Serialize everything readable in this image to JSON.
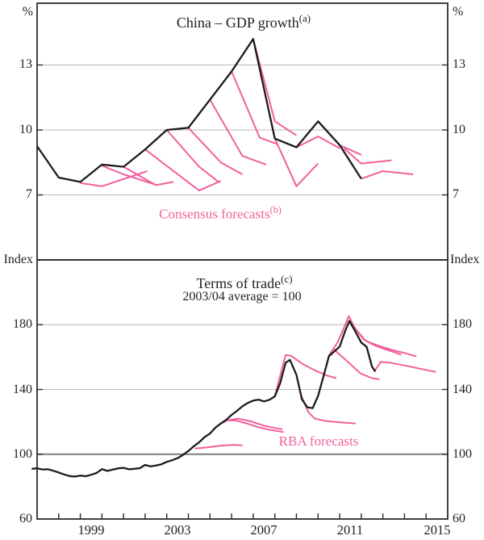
{
  "figure": {
    "top_panel": {
      "title": "China – GDP growth",
      "title_note": "(a)",
      "unit_left": "%",
      "unit_right": "%",
      "annotation": "Consensus forecasts",
      "annotation_note": "(b)"
    },
    "bottom_panel": {
      "title": "Terms of trade",
      "title_note": "(c)",
      "subtitle": "2003/04 average = 100",
      "unit_left": "Index",
      "unit_right": "Index",
      "annotation": "RBA forecasts"
    },
    "colors": {
      "actual_line": "#1c1c1c",
      "forecast_line": "#f1609c",
      "gridline": "#b7b7c0",
      "reference_line": "#7e7e7e",
      "frame": "#2d2d2d",
      "text": "#1f1f1f"
    }
  },
  "x_axis": {
    "xlim": [
      1997.0,
      2016.0
    ],
    "tick_years": [
      1998,
      1999,
      2000,
      2001,
      2002,
      2003,
      2004,
      2005,
      2006,
      2007,
      2008,
      2009,
      2010,
      2011,
      2012,
      2013,
      2014,
      2015
    ],
    "labels": [
      {
        "text": "1999",
        "year": 1999.5
      },
      {
        "text": "2003",
        "year": 2003.5
      },
      {
        "text": "2007",
        "year": 2007.5
      },
      {
        "text": "2011",
        "year": 2011.5
      },
      {
        "text": "2015",
        "year": 2015.5
      }
    ]
  },
  "chart_data": [
    {
      "type": "line",
      "panel": "top",
      "title": "China – GDP growth(a)",
      "ylabel": "%",
      "yticks": [
        7,
        10,
        13
      ],
      "ylim": [
        4.0,
        15.85
      ],
      "grid": true,
      "annotation": "Consensus forecasts(b)",
      "series": [
        {
          "name": "China GDP growth (actual)",
          "role": "actual",
          "points": [
            [
              1997,
              9.25
            ],
            [
              1998,
              7.8
            ],
            [
              1999,
              7.6
            ],
            [
              2000,
              8.4
            ],
            [
              2001,
              8.3
            ],
            [
              2002,
              9.1
            ],
            [
              2003,
              10.0
            ],
            [
              2004,
              10.1
            ],
            [
              2005,
              11.4
            ],
            [
              2006,
              12.7
            ],
            [
              2007,
              14.2
            ],
            [
              2008,
              9.6
            ],
            [
              2009,
              9.2
            ],
            [
              2010,
              10.4
            ],
            [
              2011,
              9.3
            ],
            [
              2012,
              7.75
            ]
          ]
        },
        {
          "name": "Consensus forecasts (vintages)",
          "role": "forecast",
          "lines": [
            [
              [
                1999,
                7.55
              ],
              [
                2000,
                7.4
              ],
              [
                2002.1,
                8.1
              ]
            ],
            [
              [
                2000,
                8.35
              ],
              [
                2001,
                7.95
              ],
              [
                2002.4,
                7.5
              ]
            ],
            [
              [
                2001,
                8.3
              ],
              [
                2002.5,
                7.45
              ],
              [
                2003.3,
                7.6
              ]
            ],
            [
              [
                2002,
                9.1
              ],
              [
                2004.5,
                7.2
              ],
              [
                2005.5,
                7.65
              ]
            ],
            [
              [
                2003,
                10.0
              ],
              [
                2004.5,
                8.3
              ],
              [
                2005.4,
                7.6
              ]
            ],
            [
              [
                2004,
                10.1
              ],
              [
                2005.5,
                8.5
              ],
              [
                2006.5,
                7.95
              ]
            ],
            [
              [
                2005,
                11.4
              ],
              [
                2006.5,
                8.8
              ],
              [
                2007.6,
                8.4
              ]
            ],
            [
              [
                2006,
                12.7
              ],
              [
                2007.3,
                9.65
              ],
              [
                2008.1,
                9.35
              ]
            ],
            [
              [
                2007,
                14.2
              ],
              [
                2008,
                10.4
              ],
              [
                2009,
                9.75
              ]
            ],
            [
              [
                2008,
                9.6
              ],
              [
                2009,
                7.4
              ],
              [
                2010,
                8.45
              ]
            ],
            [
              [
                2009,
                9.2
              ],
              [
                2010,
                9.7
              ],
              [
                2011,
                9.15
              ]
            ],
            [
              [
                2010,
                10.4
              ],
              [
                2011,
                9.3
              ],
              [
                2012,
                8.85
              ]
            ],
            [
              [
                2011.2,
                9.15
              ],
              [
                2012,
                8.45
              ],
              [
                2013.4,
                8.6
              ]
            ],
            [
              [
                2012,
                7.75
              ],
              [
                2013,
                8.1
              ],
              [
                2014.4,
                7.95
              ]
            ]
          ]
        }
      ]
    },
    {
      "type": "line",
      "panel": "bottom",
      "title": "Terms of trade(c)",
      "subtitle": "2003/04 average = 100",
      "ylabel": "Index",
      "yticks": [
        60,
        100,
        140,
        180
      ],
      "reference_line": 100,
      "ylim": [
        60,
        220
      ],
      "grid": true,
      "annotation": "RBA forecasts",
      "series": [
        {
          "name": "Terms of trade (actual)",
          "role": "actual",
          "points": [
            [
              1996.75,
              91
            ],
            [
              1997,
              91.3
            ],
            [
              1997.25,
              90.6
            ],
            [
              1997.5,
              90.7
            ],
            [
              1997.75,
              89.8
            ],
            [
              1998,
              88.7
            ],
            [
              1998.25,
              87.5
            ],
            [
              1998.5,
              86.5
            ],
            [
              1998.75,
              86.2
            ],
            [
              1999,
              86.8
            ],
            [
              1999.25,
              86.4
            ],
            [
              1999.5,
              87.3
            ],
            [
              1999.75,
              88.4
            ],
            [
              2000,
              90.8
            ],
            [
              2000.25,
              89.7
            ],
            [
              2000.5,
              90.5
            ],
            [
              2000.75,
              91.3
            ],
            [
              2001,
              91.6
            ],
            [
              2001.25,
              90.7
            ],
            [
              2001.5,
              91.0
            ],
            [
              2001.75,
              91.4
            ],
            [
              2002,
              93.4
            ],
            [
              2002.25,
              92.5
            ],
            [
              2002.5,
              93.0
            ],
            [
              2002.75,
              93.8
            ],
            [
              2003,
              95.3
            ],
            [
              2003.25,
              96.3
            ],
            [
              2003.5,
              97.6
            ],
            [
              2003.75,
              99.6
            ],
            [
              2004,
              102.0
            ],
            [
              2004.25,
              104.9
            ],
            [
              2004.5,
              107.4
            ],
            [
              2004.75,
              110.6
            ],
            [
              2005,
              112.8
            ],
            [
              2005.25,
              116.4
            ],
            [
              2005.5,
              119.0
            ],
            [
              2005.75,
              121.2
            ],
            [
              2006,
              124.3
            ],
            [
              2006.25,
              126.8
            ],
            [
              2006.5,
              129.6
            ],
            [
              2006.75,
              131.7
            ],
            [
              2007,
              133.1
            ],
            [
              2007.25,
              133.7
            ],
            [
              2007.5,
              132.6
            ],
            [
              2007.75,
              133.6
            ],
            [
              2008,
              135.7
            ],
            [
              2008.25,
              144.0
            ],
            [
              2008.5,
              156.5
            ],
            [
              2008.7,
              158.3
            ],
            [
              2009,
              149.0
            ],
            [
              2009.25,
              134.0
            ],
            [
              2009.5,
              129.0
            ],
            [
              2009.75,
              128.5
            ],
            [
              2010,
              136.0
            ],
            [
              2010.25,
              148.0
            ],
            [
              2010.5,
              160.5
            ],
            [
              2010.75,
              163.5
            ],
            [
              2011,
              166.5
            ],
            [
              2011.25,
              176.0
            ],
            [
              2011.45,
              182.3
            ],
            [
              2011.7,
              176.5
            ],
            [
              2012,
              169.0
            ],
            [
              2012.25,
              166.3
            ],
            [
              2012.5,
              154.0
            ],
            [
              2012.65,
              151.0
            ]
          ]
        },
        {
          "name": "RBA forecasts (vintages)",
          "role": "forecast",
          "lines": [
            [
              [
                2004.3,
                103.5
              ],
              [
                2004.9,
                104.3
              ],
              [
                2005.5,
                105.3
              ],
              [
                2006.1,
                105.8
              ],
              [
                2006.5,
                105.5
              ]
            ],
            [
              [
                2005.4,
                118
              ],
              [
                2005.8,
                121
              ],
              [
                2006.2,
                120.8
              ],
              [
                2006.7,
                119
              ],
              [
                2007.2,
                116.8
              ],
              [
                2007.7,
                115.3
              ],
              [
                2008.4,
                113.7
              ]
            ],
            [
              [
                2005.85,
                121
              ],
              [
                2006.3,
                122
              ],
              [
                2006.9,
                120.3
              ],
              [
                2007.5,
                117.6
              ],
              [
                2008,
                116.2
              ],
              [
                2008.35,
                115.4
              ]
            ],
            [
              [
                2008.0,
                136
              ],
              [
                2008.5,
                161.3
              ],
              [
                2008.75,
                160.8
              ],
              [
                2009.3,
                155.6
              ],
              [
                2009.9,
                151.5
              ],
              [
                2010.4,
                148.6
              ],
              [
                2010.85,
                147
              ]
            ],
            [
              [
                2009.2,
                137
              ],
              [
                2009.55,
                126
              ],
              [
                2009.85,
                122
              ],
              [
                2010.4,
                120.4
              ],
              [
                2011.1,
                119.6
              ],
              [
                2011.75,
                119
              ]
            ],
            [
              [
                2010.7,
                165
              ],
              [
                2011.3,
                158
              ],
              [
                2011.95,
                150
              ],
              [
                2012.5,
                147
              ],
              [
                2012.85,
                146.3
              ]
            ],
            [
              [
                2010.5,
                161
              ],
              [
                2010.9,
                169
              ],
              [
                2011.2,
                178
              ],
              [
                2011.42,
                185.3
              ],
              [
                2011.7,
                178
              ],
              [
                2012.1,
                171
              ],
              [
                2012.55,
                167.6
              ],
              [
                2013.05,
                165
              ],
              [
                2013.55,
                163
              ],
              [
                2013.85,
                161.4
              ]
            ],
            [
              [
                2011.45,
                182
              ],
              [
                2012.2,
                170
              ],
              [
                2012.8,
                167
              ],
              [
                2013.4,
                164.5
              ],
              [
                2014.15,
                162
              ],
              [
                2014.55,
                160.4
              ]
            ],
            [
              [
                2012.6,
                151
              ],
              [
                2012.9,
                157
              ],
              [
                2013.3,
                156.6
              ],
              [
                2014.2,
                154.3
              ],
              [
                2014.9,
                152.3
              ],
              [
                2015.45,
                150.8
              ]
            ]
          ]
        }
      ]
    }
  ]
}
